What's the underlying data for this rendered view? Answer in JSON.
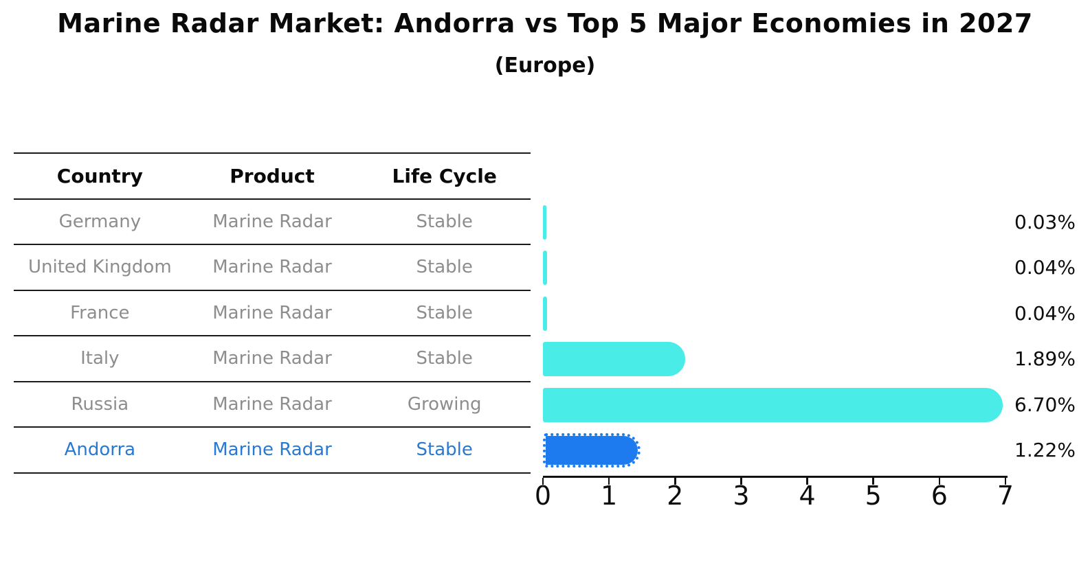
{
  "title": "Marine Radar Market: Andorra vs Top 5 Major Economies in 2027",
  "subtitle": "(Europe)",
  "table": {
    "headers": [
      "Country",
      "Product",
      "Life Cycle"
    ],
    "rows": [
      {
        "country": "Germany",
        "product": "Marine Radar",
        "life_cycle": "Stable",
        "highlight": false
      },
      {
        "country": "United Kingdom",
        "product": "Marine Radar",
        "life_cycle": "Stable",
        "highlight": false
      },
      {
        "country": "France",
        "product": "Marine Radar",
        "life_cycle": "Stable",
        "highlight": false
      },
      {
        "country": "Italy",
        "product": "Marine Radar",
        "life_cycle": "Stable",
        "highlight": false
      },
      {
        "country": "Russia",
        "product": "Marine Radar",
        "life_cycle": "Growing",
        "highlight": false
      },
      {
        "country": "Andorra",
        "product": "Marine Radar",
        "life_cycle": "Stable",
        "highlight": true
      }
    ]
  },
  "chart_data": {
    "type": "bar",
    "orientation": "horizontal",
    "title": "Marine Radar Market: Andorra vs Top 5 Major Economies in 2027",
    "subtitle": "(Europe)",
    "categories": [
      "Germany",
      "United Kingdom",
      "France",
      "Italy",
      "Russia",
      "Andorra"
    ],
    "values": [
      0.03,
      0.04,
      0.04,
      1.89,
      6.7,
      1.22
    ],
    "value_labels": [
      "0.03%",
      "0.04%",
      "0.04%",
      "1.89%",
      "6.70%",
      "1.22%"
    ],
    "xlabel": "",
    "ylabel": "",
    "xlim": [
      0,
      7
    ],
    "xticks": [
      "0",
      "1",
      "2",
      "3",
      "4",
      "5",
      "6",
      "7"
    ],
    "grid": false,
    "legend": null,
    "highlight_index": 5,
    "highlight_style": "dotted-border",
    "colors": {
      "default_bar": "#4aece8",
      "highlight_bar": "#1e7bef",
      "highlight_text": "#2979d2",
      "row_text": "#8d8d8d",
      "header_text": "#0a0a0a",
      "axis": "#111111"
    }
  }
}
